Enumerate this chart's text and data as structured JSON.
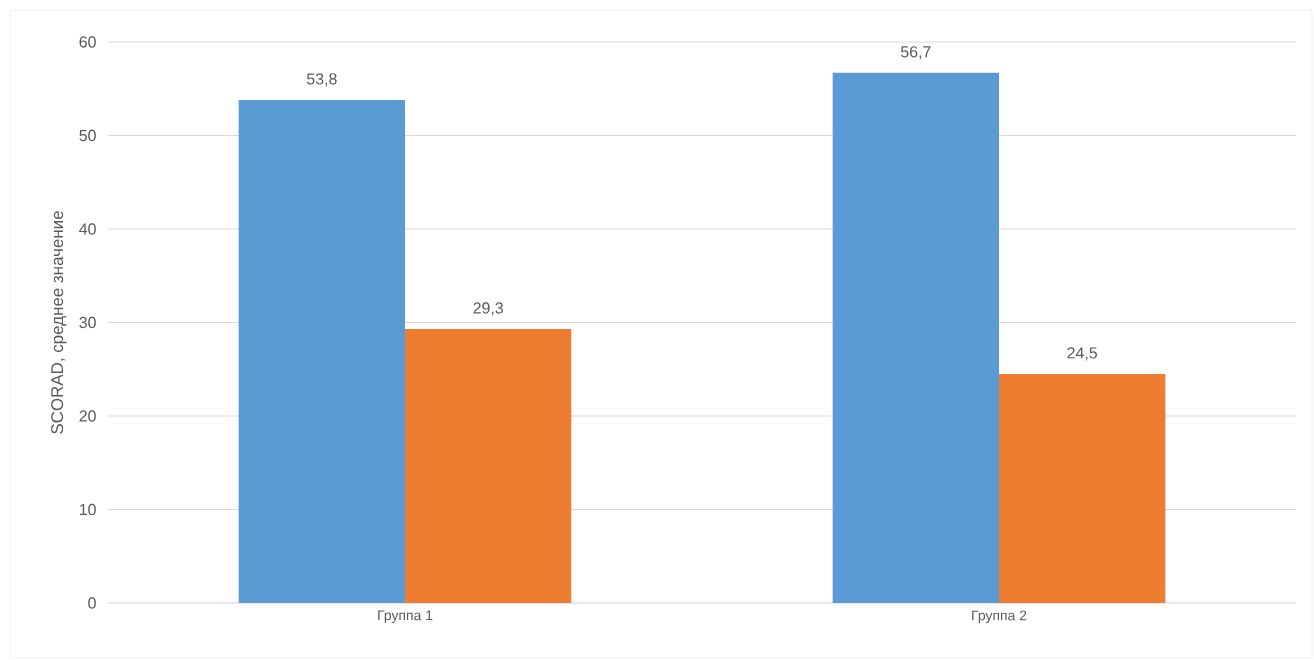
{
  "chart_data": {
    "type": "bar",
    "ylabel": "SCORAD, среднее значение",
    "categories": [
      "Группа 1",
      "Группа 2"
    ],
    "series": [
      {
        "color": "#5b9bd5",
        "values": [
          53.8,
          56.7
        ],
        "value_labels": [
          "53,8",
          "56,7"
        ]
      },
      {
        "color": "#ed7d31",
        "values": [
          29.3,
          24.5
        ],
        "value_labels": [
          "29,3",
          "24,5"
        ]
      }
    ],
    "ylim": [
      0,
      60
    ],
    "yticks": [
      0,
      10,
      20,
      30,
      40,
      50,
      60
    ],
    "grid": "y"
  }
}
